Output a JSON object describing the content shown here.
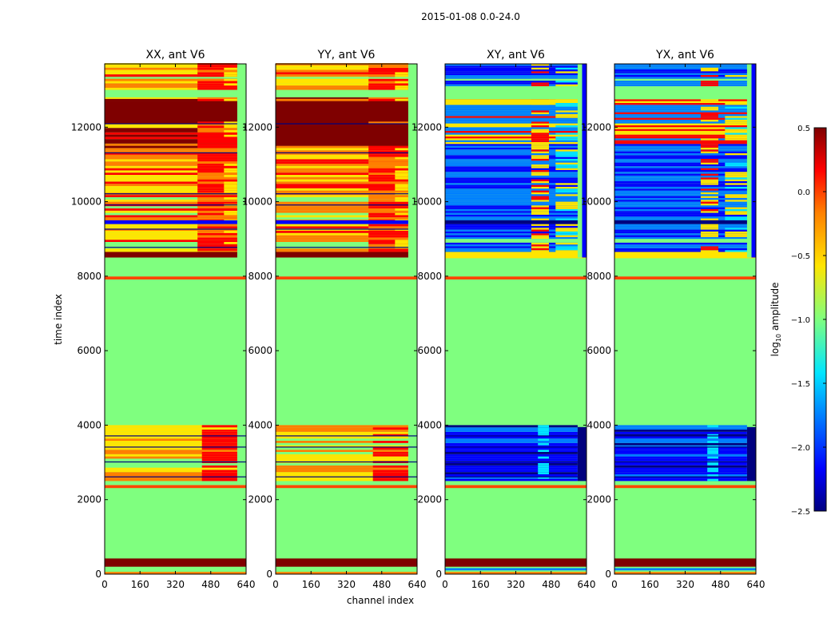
{
  "figure": {
    "suptitle": "2015-01-08 0.0-24.0"
  },
  "colors": {
    "jet": [
      "#00007f",
      "#0000ff",
      "#007fff",
      "#00e5ff",
      "#7fff7f",
      "#ffe500",
      "#ff7f00",
      "#ff0000",
      "#7f0000"
    ],
    "line": "#000000"
  },
  "chart_data": {
    "type": "heatmap",
    "xlabel": "channel index",
    "ylabel": "time index",
    "xlim": [
      0,
      640
    ],
    "ylim": [
      0,
      13700
    ],
    "xticks": [
      0,
      160,
      320,
      480,
      640
    ],
    "yticks": [
      0,
      2000,
      4000,
      6000,
      8000,
      10000,
      12000
    ],
    "xtick_labels": [
      "0",
      "160",
      "320",
      "480",
      "640"
    ],
    "ytick_labels": [
      "0",
      "2000",
      "4000",
      "6000",
      "8000",
      "10000",
      "12000"
    ],
    "panels": [
      {
        "title": "XX, ant V6",
        "kind": "parallel"
      },
      {
        "title": "YY, ant V6",
        "kind": "parallel"
      },
      {
        "title": "XY, ant V6",
        "kind": "cross"
      },
      {
        "title": "YX, ant V6",
        "kind": "cross"
      }
    ],
    "colorbar": {
      "label": "log",
      "label_sub": "10",
      "label_rest": " amplitude",
      "range": [
        -2.5,
        0.5
      ],
      "ticks": [
        0.5,
        0.0,
        -0.5,
        -1.0,
        -1.5,
        -2.0,
        -2.5
      ],
      "tick_labels": [
        "0.5",
        "0.0",
        "−0.5",
        "−1.0",
        "−1.5",
        "−2.0",
        "−2.5"
      ]
    },
    "dominant_value_log10": -1.0,
    "features": {
      "flag_line_times": [
        7950,
        2350
      ],
      "dark_band_times": [
        [
          200,
          420
        ]
      ],
      "active_blocks_times": [
        [
          2500,
          3950
        ],
        [
          8500,
          13700
        ]
      ]
    }
  }
}
